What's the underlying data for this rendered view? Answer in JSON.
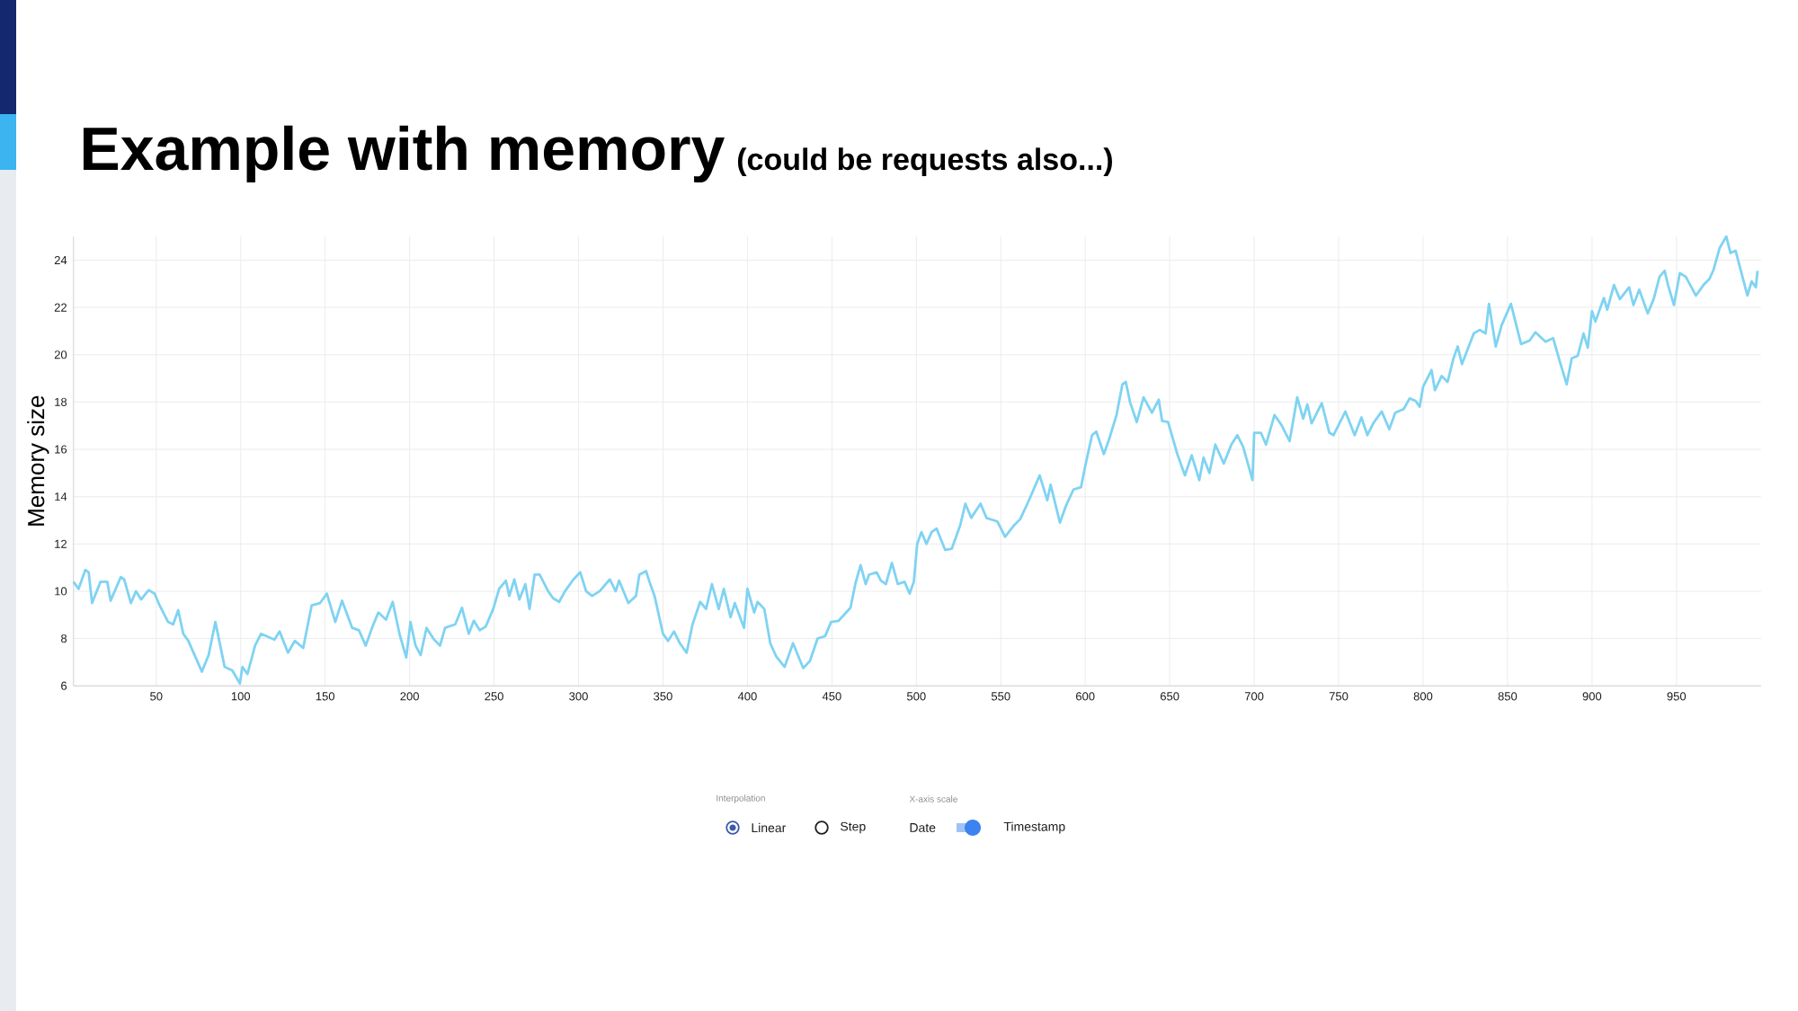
{
  "chart_data": {
    "type": "line",
    "title": "Example with memory",
    "subtitle": "(could be requests also...)",
    "ylabel": "Memory size",
    "color": "#7fd3f2",
    "grid": true,
    "xlim": [
      1,
      1000
    ],
    "ylim": [
      6,
      25
    ],
    "xticks": [
      50,
      100,
      150,
      200,
      250,
      300,
      350,
      400,
      450,
      500,
      550,
      600,
      650,
      700,
      750,
      800,
      850,
      900,
      950
    ],
    "yticks": [
      6,
      8,
      10,
      12,
      14,
      16,
      18,
      20,
      22,
      24
    ],
    "annotations": [
      "Interpolation",
      "Linear",
      "Step",
      "X-axis scale",
      "Date",
      "Timestamp"
    ],
    "x": [
      1,
      4,
      8,
      10,
      12,
      17,
      21,
      23,
      29,
      31,
      35,
      38,
      41,
      45.5,
      49,
      52,
      57,
      60,
      63,
      66,
      69,
      77,
      81,
      85,
      90.5,
      95,
      99.5,
      101,
      104,
      108.5,
      112,
      120,
      123,
      128,
      132,
      137,
      142,
      147,
      151,
      156,
      160,
      166,
      170,
      174,
      178,
      181.5,
      186,
      190,
      194,
      198,
      200.5,
      203.5,
      206.5,
      210,
      214.5,
      218,
      221,
      227,
      231,
      235,
      238,
      241.5,
      245,
      249.5,
      253,
      257,
      259,
      262,
      265,
      268.5,
      271,
      274,
      277,
      282,
      285,
      288.5,
      292,
      297,
      301,
      304.5,
      308,
      312.5,
      318.5,
      322,
      324,
      329.5,
      334,
      336,
      340,
      342,
      345,
      350,
      353,
      356.5,
      360,
      364,
      367.5,
      372,
      375.5,
      379,
      383,
      386,
      390,
      392.5,
      398,
      400,
      404,
      406,
      410,
      413.5,
      417,
      422,
      427,
      433,
      437,
      441.5,
      446,
      449.5,
      454,
      461,
      464,
      467,
      470,
      472,
      476.5,
      479,
      482,
      485.5,
      489,
      493,
      496,
      498.5,
      500.5,
      503,
      506,
      509,
      512,
      517,
      521,
      526,
      529,
      532.5,
      538,
      541.5,
      548,
      552.5,
      558,
      561.5,
      567,
      573,
      577.5,
      579.5,
      585,
      588.5,
      593,
      597.5,
      600,
      604,
      606.5,
      611,
      614,
      618.5,
      622,
      624,
      626.5,
      630.5,
      634.5,
      639.5,
      643.5,
      645.5,
      649,
      654.5,
      659,
      663,
      667.5,
      670,
      673.5,
      677,
      682,
      686.5,
      690,
      693.5,
      699,
      700,
      704,
      707,
      712,
      716,
      721,
      725.5,
      729,
      731.5,
      734,
      740,
      744.5,
      747,
      754,
      759.5,
      763.5,
      767,
      770.5,
      775.5,
      780,
      783.5,
      788.5,
      792,
      795.5,
      798,
      800,
      805,
      807,
      811,
      814.5,
      818,
      820.5,
      823,
      830,
      833.5,
      837,
      839,
      843,
      846.5,
      852,
      858,
      863,
      866.5,
      872.5,
      877,
      881,
      885,
      888,
      891.5,
      895,
      897.5,
      900,
      902,
      907,
      909,
      913,
      916.5,
      922,
      924.5,
      928,
      933,
      936.5,
      940,
      943,
      945,
      948.5,
      952,
      955.5,
      961.5,
      966,
      969.5,
      972,
      975.5,
      979.5,
      982,
      985,
      988.5,
      992,
      994.5,
      997,
      998
    ],
    "values": [
      10.4,
      10.1,
      10.9,
      10.8,
      9.5,
      10.4,
      10.4,
      9.6,
      10.6,
      10.5,
      9.5,
      10.0,
      9.65,
      10.05,
      9.9,
      9.4,
      8.7,
      8.6,
      9.2,
      8.2,
      7.9,
      6.6,
      7.3,
      8.7,
      6.8,
      6.65,
      6.1,
      6.8,
      6.5,
      7.7,
      8.2,
      7.95,
      8.3,
      7.4,
      7.9,
      7.6,
      9.4,
      9.5,
      9.9,
      8.7,
      9.6,
      8.45,
      8.35,
      7.7,
      8.5,
      9.1,
      8.8,
      9.55,
      8.2,
      7.2,
      8.7,
      7.7,
      7.3,
      8.45,
      7.95,
      7.7,
      8.45,
      8.6,
      9.3,
      8.2,
      8.75,
      8.35,
      8.5,
      9.25,
      10.1,
      10.45,
      9.8,
      10.5,
      9.65,
      10.3,
      9.25,
      10.7,
      10.7,
      10.0,
      9.7,
      9.55,
      10.0,
      10.5,
      10.8,
      10.0,
      9.8,
      10.0,
      10.5,
      10.0,
      10.45,
      9.5,
      9.8,
      10.7,
      10.85,
      10.4,
      9.8,
      8.2,
      7.9,
      8.3,
      7.8,
      7.4,
      8.6,
      9.55,
      9.25,
      10.3,
      9.25,
      10.1,
      8.9,
      9.5,
      8.45,
      10.1,
      9.1,
      9.55,
      9.25,
      7.8,
      7.25,
      6.8,
      7.8,
      6.75,
      7.05,
      8.0,
      8.1,
      8.7,
      8.75,
      9.3,
      10.35,
      11.1,
      10.3,
      10.7,
      10.8,
      10.45,
      10.3,
      11.2,
      10.3,
      10.4,
      9.9,
      10.4,
      12.0,
      12.5,
      12.0,
      12.5,
      12.65,
      11.75,
      11.8,
      12.8,
      13.7,
      13.1,
      13.7,
      13.1,
      12.95,
      12.3,
      12.8,
      13.05,
      13.9,
      14.9,
      13.85,
      14.5,
      12.9,
      13.6,
      14.3,
      14.4,
      15.3,
      16.6,
      16.75,
      15.8,
      16.4,
      17.45,
      18.75,
      18.85,
      18.0,
      17.15,
      18.2,
      17.55,
      18.1,
      17.2,
      17.15,
      15.8,
      14.9,
      15.75,
      14.7,
      15.65,
      15.0,
      16.2,
      15.4,
      16.2,
      16.6,
      16.1,
      14.7,
      16.7,
      16.7,
      16.2,
      17.45,
      17.05,
      16.35,
      18.2,
      17.3,
      17.9,
      17.1,
      17.95,
      16.7,
      16.6,
      17.6,
      16.6,
      17.35,
      16.6,
      17.1,
      17.6,
      16.85,
      17.55,
      17.7,
      18.15,
      18.05,
      17.8,
      18.65,
      19.35,
      18.5,
      19.1,
      18.85,
      19.85,
      20.35,
      19.6,
      20.9,
      21.05,
      20.9,
      22.15,
      20.35,
      21.25,
      22.15,
      20.45,
      20.6,
      20.95,
      20.55,
      20.7,
      19.7,
      18.75,
      19.85,
      19.95,
      20.9,
      20.3,
      21.85,
      21.4,
      22.4,
      21.9,
      22.95,
      22.35,
      22.85,
      22.1,
      22.75,
      21.75,
      22.35,
      23.3,
      23.55,
      22.95,
      22.1,
      23.45,
      23.3,
      22.5,
      22.95,
      23.2,
      23.6,
      24.5,
      25.0,
      24.3,
      24.4,
      23.45,
      22.5,
      23.1,
      22.85,
      23.55
    ]
  }
}
